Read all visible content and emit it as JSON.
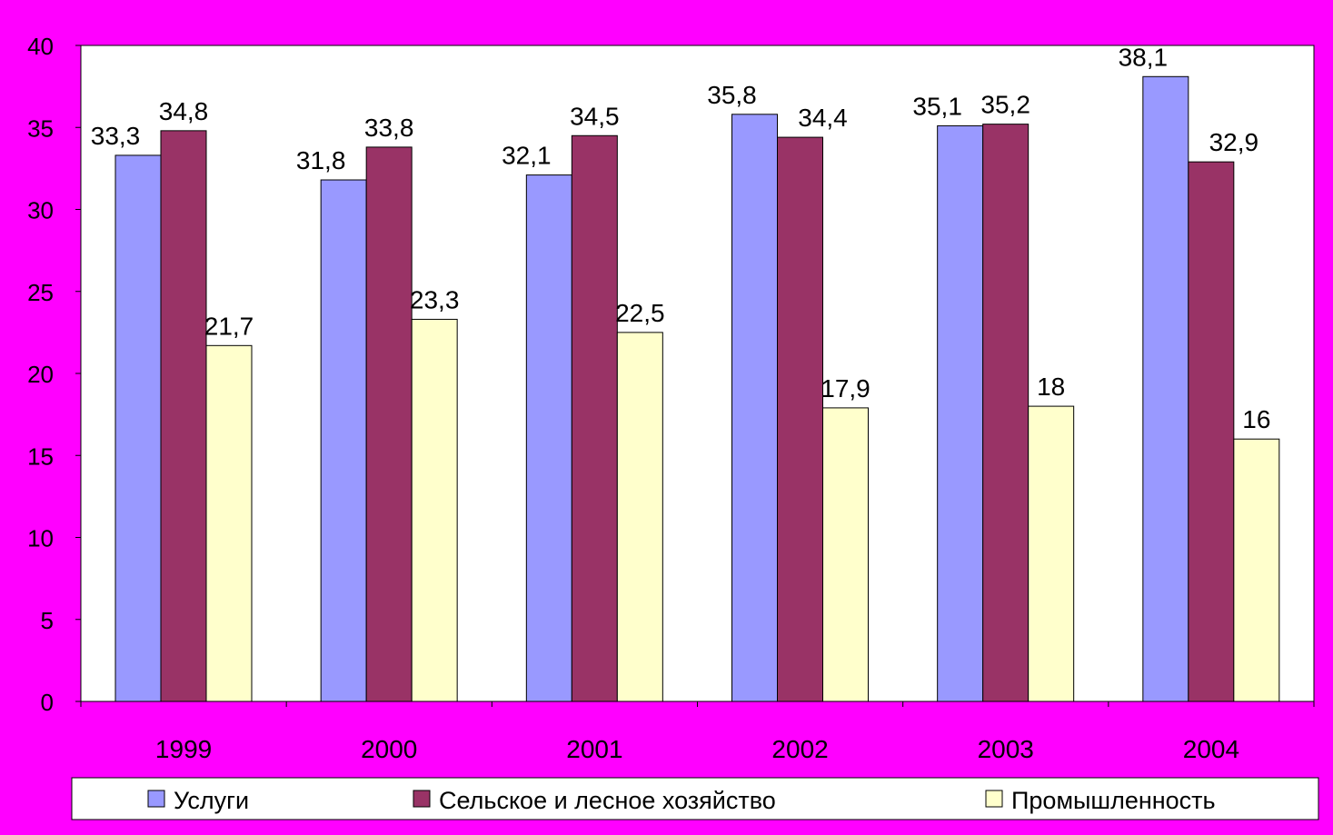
{
  "chart_data": {
    "type": "bar",
    "categories": [
      "1999",
      "2000",
      "2001",
      "2002",
      "2003",
      "2004"
    ],
    "series": [
      {
        "name": "Услуги",
        "values": [
          33.3,
          31.8,
          32.1,
          35.8,
          35.1,
          38.1
        ],
        "labels": [
          "33,3",
          "31,8",
          "32,1",
          "35,8",
          "35,1",
          "38,1"
        ],
        "color": "#9999ff"
      },
      {
        "name": "Сельское и лесное хозяйство",
        "values": [
          34.8,
          33.8,
          34.5,
          34.4,
          35.2,
          32.9
        ],
        "labels": [
          "34,8",
          "33,8",
          "34,5",
          "34,4",
          "35,2",
          "32,9"
        ],
        "color": "#993366"
      },
      {
        "name": "Промышленность",
        "values": [
          21.7,
          23.3,
          22.5,
          17.9,
          18,
          16
        ],
        "labels": [
          "21,7",
          "23,3",
          "22,5",
          "17,9",
          "18",
          "16"
        ],
        "color": "#ffffcc"
      }
    ],
    "ylim": [
      0,
      40
    ],
    "yticks": [
      "0",
      "5",
      "10",
      "15",
      "20",
      "25",
      "30",
      "35",
      "40"
    ],
    "grid": false,
    "legend_position": "bottom",
    "background_color": "#ff00ff",
    "plot_background_color": "#ffffff"
  }
}
